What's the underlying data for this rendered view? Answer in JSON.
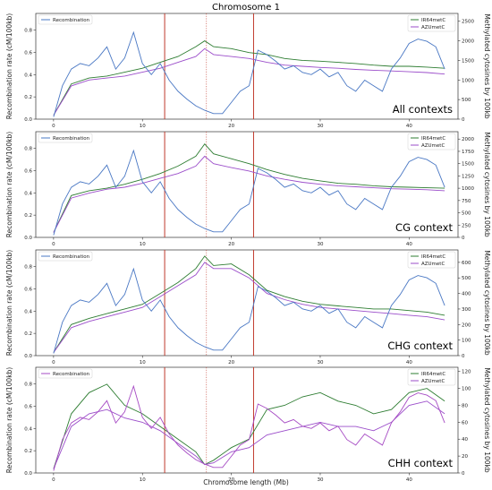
{
  "title": "Chromosome 1",
  "xlabel": "Chromosome length (Mb)",
  "colors": {
    "recombination": "#4a78c4",
    "recombination_chh": "#a64bc4",
    "ir64": "#2e7d32",
    "azu": "#9b4dca",
    "cen_boundary": "#c0392b",
    "centromere": "#c0392b"
  },
  "chart_data": [
    {
      "type": "line",
      "context_label": "All contexts",
      "xlim": [
        -2,
        45.5
      ],
      "xticks": [
        "0",
        "10",
        "20",
        "30",
        "40"
      ],
      "ylabel_left": "Recombination rate (cM/100kb)",
      "ylabel_right": "Methylated cytosines by 100kb",
      "ylim_left": [
        0,
        0.95
      ],
      "ylim_right": [
        0,
        2700
      ],
      "yticks_left": [
        "0.0",
        "0.2",
        "0.4",
        "0.6",
        "0.8"
      ],
      "yticks_right": [
        "0",
        "500",
        "1000",
        "1500",
        "2000",
        "2500"
      ],
      "legend_left": [
        "Recombination"
      ],
      "legend_right": [
        "IR64metC",
        "AZUmetC"
      ],
      "vlines_solid": [
        12.5,
        22.5
      ],
      "vline_dotted": 17.2,
      "recombination": {
        "x": [
          0,
          1,
          2,
          3,
          4,
          5,
          6,
          7,
          8,
          9,
          10,
          11,
          12,
          13,
          14,
          15,
          16,
          17,
          18,
          19,
          20,
          21,
          22,
          23,
          24,
          25,
          26,
          27,
          28,
          29,
          30,
          31,
          32,
          33,
          34,
          35,
          36,
          37,
          38,
          39,
          40,
          41,
          42,
          43,
          44
        ],
        "values": [
          0.02,
          0.3,
          0.45,
          0.5,
          0.48,
          0.55,
          0.65,
          0.45,
          0.55,
          0.78,
          0.5,
          0.4,
          0.5,
          0.35,
          0.25,
          0.18,
          0.12,
          0.08,
          0.05,
          0.05,
          0.15,
          0.25,
          0.3,
          0.62,
          0.58,
          0.52,
          0.45,
          0.48,
          0.42,
          0.4,
          0.45,
          0.38,
          0.42,
          0.3,
          0.25,
          0.35,
          0.3,
          0.25,
          0.45,
          0.55,
          0.68,
          0.72,
          0.7,
          0.65,
          0.45
        ]
      },
      "methylation": [
        {
          "name": "IR64metC",
          "x": [
            0,
            2,
            4,
            6,
            8,
            10,
            12,
            14,
            16,
            17,
            18,
            20,
            22,
            24,
            26,
            28,
            30,
            32,
            34,
            36,
            38,
            40,
            42,
            44
          ],
          "values": [
            100,
            900,
            1050,
            1100,
            1200,
            1300,
            1450,
            1600,
            1850,
            2000,
            1850,
            1800,
            1700,
            1650,
            1550,
            1500,
            1480,
            1450,
            1420,
            1380,
            1350,
            1350,
            1330,
            1300
          ]
        },
        {
          "name": "AZUmetC",
          "x": [
            0,
            2,
            4,
            6,
            8,
            10,
            12,
            14,
            16,
            17,
            18,
            20,
            22,
            24,
            26,
            28,
            30,
            32,
            34,
            36,
            38,
            40,
            42,
            44
          ],
          "values": [
            100,
            850,
            1000,
            1050,
            1100,
            1200,
            1300,
            1450,
            1600,
            1800,
            1650,
            1600,
            1550,
            1450,
            1380,
            1350,
            1320,
            1300,
            1270,
            1250,
            1230,
            1210,
            1190,
            1150
          ]
        }
      ]
    },
    {
      "type": "line",
      "context_label": "CG context",
      "xlim": [
        -2,
        45.5
      ],
      "xticks": [
        "0",
        "10",
        "20",
        "30",
        "40"
      ],
      "ylabel_left": "Recombination rate (cM/100kb)",
      "ylabel_right": "Methylated cytosines by 100kb",
      "ylim_left": [
        0,
        0.95
      ],
      "ylim_right": [
        0,
        2150
      ],
      "yticks_left": [
        "0.0",
        "0.2",
        "0.4",
        "0.6",
        "0.8"
      ],
      "yticks_right": [
        "0",
        "250",
        "500",
        "750",
        "1000",
        "1250",
        "1500",
        "1750",
        "2000"
      ],
      "legend_left": [
        "Recombination"
      ],
      "legend_right": [
        "IR64metC",
        "AZUmetC"
      ],
      "vlines_solid": [
        12.5,
        22.5
      ],
      "vline_dotted": 17.2,
      "recombination": {
        "x": [
          0,
          1,
          2,
          3,
          4,
          5,
          6,
          7,
          8,
          9,
          10,
          11,
          12,
          13,
          14,
          15,
          16,
          17,
          18,
          19,
          20,
          21,
          22,
          23,
          24,
          25,
          26,
          27,
          28,
          29,
          30,
          31,
          32,
          33,
          34,
          35,
          36,
          37,
          38,
          39,
          40,
          41,
          42,
          43,
          44
        ],
        "values": [
          0.02,
          0.3,
          0.45,
          0.5,
          0.48,
          0.55,
          0.65,
          0.45,
          0.55,
          0.78,
          0.5,
          0.4,
          0.5,
          0.35,
          0.25,
          0.18,
          0.12,
          0.08,
          0.05,
          0.05,
          0.15,
          0.25,
          0.3,
          0.62,
          0.58,
          0.52,
          0.45,
          0.48,
          0.42,
          0.4,
          0.45,
          0.38,
          0.42,
          0.3,
          0.25,
          0.35,
          0.3,
          0.25,
          0.45,
          0.55,
          0.68,
          0.72,
          0.7,
          0.65,
          0.45
        ]
      },
      "methylation": [
        {
          "name": "IR64metC",
          "x": [
            0,
            2,
            4,
            6,
            8,
            10,
            12,
            14,
            16,
            17,
            18,
            20,
            22,
            24,
            26,
            28,
            30,
            32,
            34,
            36,
            38,
            40,
            42,
            44
          ],
          "values": [
            100,
            850,
            950,
            1000,
            1080,
            1180,
            1300,
            1450,
            1650,
            1900,
            1700,
            1600,
            1500,
            1380,
            1280,
            1200,
            1150,
            1100,
            1080,
            1050,
            1030,
            1020,
            1010,
            1000
          ]
        },
        {
          "name": "AZUmetC",
          "x": [
            0,
            2,
            4,
            6,
            8,
            10,
            12,
            14,
            16,
            17,
            18,
            20,
            22,
            24,
            26,
            28,
            30,
            32,
            34,
            36,
            38,
            40,
            42,
            44
          ],
          "values": [
            100,
            800,
            900,
            980,
            1020,
            1100,
            1200,
            1300,
            1450,
            1650,
            1500,
            1420,
            1350,
            1250,
            1180,
            1120,
            1080,
            1050,
            1030,
            1010,
            990,
            980,
            970,
            950
          ]
        }
      ]
    },
    {
      "type": "line",
      "context_label": "CHG context",
      "xlim": [
        -2,
        45.5
      ],
      "xticks": [
        "0",
        "10",
        "20",
        "30",
        "40"
      ],
      "ylabel_left": "Recombination rate (cM/100kb)",
      "ylabel_right": "Methylated cytosines by 100kb",
      "ylim_left": [
        0,
        0.95
      ],
      "ylim_right": [
        0,
        680
      ],
      "yticks_left": [
        "0.0",
        "0.2",
        "0.4",
        "0.6",
        "0.8"
      ],
      "yticks_right": [
        "0",
        "100",
        "200",
        "300",
        "400",
        "500",
        "600"
      ],
      "legend_left": [
        "Recombination"
      ],
      "legend_right": [
        "IR64metC",
        "AZUmetC"
      ],
      "vlines_solid": [
        12.5,
        22.5
      ],
      "vline_dotted": 17.2,
      "recombination": {
        "x": [
          0,
          1,
          2,
          3,
          4,
          5,
          6,
          7,
          8,
          9,
          10,
          11,
          12,
          13,
          14,
          15,
          16,
          17,
          18,
          19,
          20,
          21,
          22,
          23,
          24,
          25,
          26,
          27,
          28,
          29,
          30,
          31,
          32,
          33,
          34,
          35,
          36,
          37,
          38,
          39,
          40,
          41,
          42,
          43,
          44
        ],
        "values": [
          0.02,
          0.3,
          0.45,
          0.5,
          0.48,
          0.55,
          0.65,
          0.45,
          0.55,
          0.78,
          0.5,
          0.4,
          0.5,
          0.35,
          0.25,
          0.18,
          0.12,
          0.08,
          0.05,
          0.05,
          0.15,
          0.25,
          0.3,
          0.62,
          0.58,
          0.52,
          0.45,
          0.48,
          0.42,
          0.4,
          0.45,
          0.38,
          0.42,
          0.3,
          0.25,
          0.35,
          0.3,
          0.25,
          0.45,
          0.55,
          0.68,
          0.72,
          0.7,
          0.65,
          0.45
        ]
      },
      "methylation": [
        {
          "name": "IR64metC",
          "x": [
            0,
            2,
            4,
            6,
            8,
            10,
            12,
            14,
            16,
            17,
            18,
            20,
            22,
            24,
            26,
            28,
            30,
            32,
            34,
            36,
            38,
            40,
            42,
            44
          ],
          "values": [
            20,
            200,
            240,
            270,
            300,
            330,
            400,
            470,
            560,
            640,
            580,
            590,
            520,
            420,
            380,
            350,
            330,
            320,
            310,
            300,
            300,
            290,
            280,
            260
          ]
        },
        {
          "name": "AZUmetC",
          "x": [
            0,
            2,
            4,
            6,
            8,
            10,
            12,
            14,
            16,
            17,
            18,
            20,
            22,
            24,
            26,
            28,
            30,
            32,
            34,
            36,
            38,
            40,
            42,
            44
          ],
          "values": [
            20,
            180,
            220,
            250,
            280,
            310,
            380,
            450,
            520,
            600,
            560,
            560,
            500,
            400,
            360,
            330,
            310,
            300,
            290,
            280,
            270,
            260,
            250,
            230
          ]
        }
      ]
    },
    {
      "type": "line",
      "context_label": "CHH context",
      "xlim": [
        -2,
        45.5
      ],
      "xticks": [
        "0",
        "10",
        "20",
        "30",
        "40"
      ],
      "ylabel_left": "Recombination rate (cM/100kb)",
      "ylabel_right": "Methylated cytosines by 100kb",
      "ylim_left": [
        0,
        0.95
      ],
      "ylim_right": [
        0,
        125
      ],
      "yticks_left": [
        "0.0",
        "0.2",
        "0.4",
        "0.6",
        "0.8"
      ],
      "yticks_right": [
        "0",
        "20",
        "40",
        "60",
        "80",
        "100",
        "120"
      ],
      "legend_left": [
        "Recombination"
      ],
      "legend_right": [
        "IR64metC",
        "AZUmetC"
      ],
      "vlines_solid": [
        12.5,
        22.5
      ],
      "vline_dotted": 17.2,
      "recombination": {
        "x": [
          0,
          1,
          2,
          3,
          4,
          5,
          6,
          7,
          8,
          9,
          10,
          11,
          12,
          13,
          14,
          15,
          16,
          17,
          18,
          19,
          20,
          21,
          22,
          23,
          24,
          25,
          26,
          27,
          28,
          29,
          30,
          31,
          32,
          33,
          34,
          35,
          36,
          37,
          38,
          39,
          40,
          41,
          42,
          43,
          44
        ],
        "values": [
          0.02,
          0.3,
          0.45,
          0.5,
          0.48,
          0.55,
          0.65,
          0.45,
          0.55,
          0.78,
          0.5,
          0.4,
          0.5,
          0.35,
          0.25,
          0.18,
          0.12,
          0.08,
          0.05,
          0.05,
          0.15,
          0.25,
          0.3,
          0.62,
          0.58,
          0.52,
          0.45,
          0.48,
          0.42,
          0.4,
          0.45,
          0.38,
          0.42,
          0.3,
          0.25,
          0.35,
          0.3,
          0.25,
          0.45,
          0.55,
          0.68,
          0.72,
          0.7,
          0.65,
          0.45
        ]
      },
      "methylation": [
        {
          "name": "IR64metC",
          "x": [
            0,
            2,
            4,
            6,
            8,
            10,
            12,
            14,
            16,
            17,
            18,
            20,
            22,
            24,
            26,
            28,
            30,
            32,
            34,
            36,
            38,
            40,
            42,
            44
          ],
          "values": [
            5,
            70,
            95,
            105,
            80,
            70,
            55,
            40,
            25,
            10,
            15,
            30,
            40,
            75,
            80,
            90,
            95,
            85,
            80,
            70,
            75,
            95,
            100,
            85
          ]
        },
        {
          "name": "AZUmetC",
          "x": [
            0,
            2,
            4,
            6,
            8,
            10,
            12,
            14,
            16,
            17,
            18,
            20,
            22,
            24,
            26,
            28,
            30,
            32,
            34,
            36,
            38,
            40,
            42,
            44
          ],
          "values": [
            5,
            55,
            70,
            75,
            65,
            60,
            50,
            35,
            20,
            10,
            12,
            25,
            30,
            45,
            50,
            55,
            60,
            55,
            55,
            50,
            60,
            80,
            85,
            70
          ]
        }
      ]
    }
  ]
}
